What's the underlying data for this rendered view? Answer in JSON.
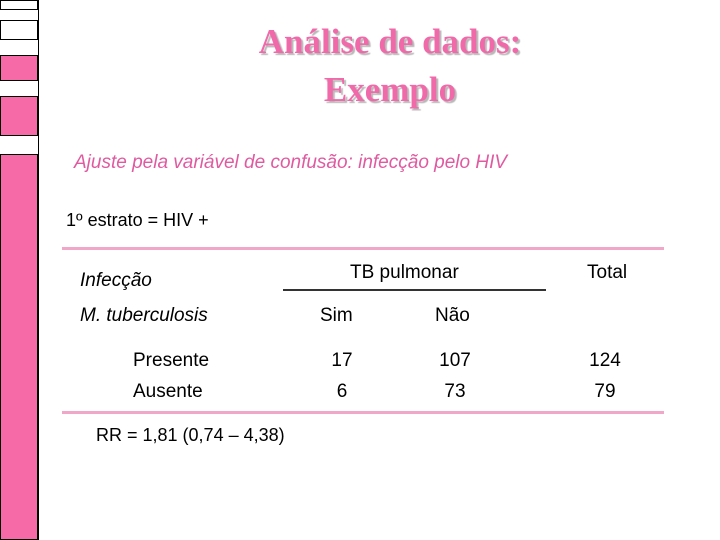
{
  "colors": {
    "accent_pink": "#f06aaa",
    "rule_pink": "#f1a8c8",
    "bar_pink": "#f76aa8"
  },
  "slide": {
    "title_line1": "Análise de dados:",
    "title_line2": "Exemplo",
    "subtitle": "Ajuste pela variável de confusão: infecção pelo HIV",
    "stratum": "1º estrato = HIV +",
    "table": {
      "row_header_1": "Infecção",
      "row_header_2": "M. tuberculosis",
      "group_header": "TB pulmonar",
      "col_yes": "Sim",
      "col_no": "Não",
      "col_total": "Total",
      "rows": [
        {
          "label": "Presente",
          "sim": "17",
          "nao": "107",
          "total": "124"
        },
        {
          "label": "Ausente",
          "sim": "6",
          "nao": "73",
          "total": "79"
        }
      ]
    },
    "rr": "RR = 1,81 (0,74 – 4,38)"
  }
}
